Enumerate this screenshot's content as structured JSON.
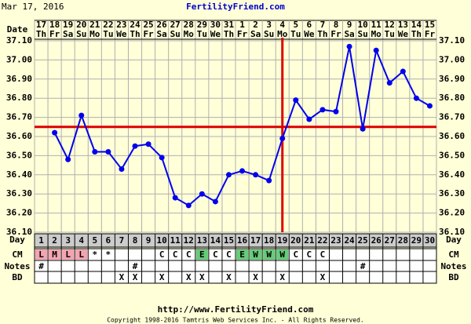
{
  "chart_data": {
    "type": "line",
    "header_date": "Mar 17, 2016",
    "title": "FertilityFriend.com",
    "row_labels": {
      "date": "Date",
      "day": "Day",
      "cm": "CM",
      "notes": "Notes",
      "bd": "BD"
    },
    "dates": [
      "17",
      "18",
      "19",
      "20",
      "21",
      "22",
      "23",
      "24",
      "25",
      "26",
      "27",
      "28",
      "29",
      "30",
      "31",
      "1",
      "2",
      "3",
      "4",
      "5",
      "6",
      "7",
      "8",
      "9",
      "10",
      "11",
      "12",
      "13",
      "14",
      "15"
    ],
    "weekdays": [
      "Th",
      "Fr",
      "Sa",
      "Su",
      "Mo",
      "Tu",
      "We",
      "Th",
      "Fr",
      "Sa",
      "Su",
      "Mo",
      "Tu",
      "We",
      "Th",
      "Fr",
      "Sa",
      "Su",
      "Mo",
      "Tu",
      "We",
      "Th",
      "Fr",
      "Sa",
      "Su",
      "Mo",
      "Tu",
      "We",
      "Th",
      "Fr"
    ],
    "categories": [
      1,
      2,
      3,
      4,
      5,
      6,
      7,
      8,
      9,
      10,
      11,
      12,
      13,
      14,
      15,
      16,
      17,
      18,
      19,
      20,
      21,
      22,
      23,
      24,
      25,
      26,
      27,
      28,
      29,
      30
    ],
    "series": [
      {
        "color": "#0000ee",
        "values": [
          null,
          36.62,
          36.48,
          36.71,
          36.52,
          36.52,
          36.43,
          36.55,
          36.56,
          36.49,
          36.28,
          36.24,
          36.3,
          36.26,
          36.4,
          36.42,
          36.4,
          36.37,
          36.59,
          36.79,
          36.69,
          36.74,
          36.73,
          37.07,
          36.64,
          37.05,
          36.88,
          36.94,
          36.8,
          36.76
        ]
      }
    ],
    "ylim": [
      36.1,
      37.1
    ],
    "yticks": [
      {
        "value": 36.1,
        "label": "36.10"
      },
      {
        "value": 36.2,
        "label": "36.20"
      },
      {
        "value": 36.3,
        "label": "36.30"
      },
      {
        "value": 36.4,
        "label": "36.40"
      },
      {
        "value": 36.5,
        "label": "36.50"
      },
      {
        "value": 36.6,
        "label": "36.60"
      },
      {
        "value": 36.7,
        "label": "36.70"
      },
      {
        "value": 36.8,
        "label": "36.80"
      },
      {
        "value": 36.9,
        "label": "36.90"
      },
      {
        "value": 37.0,
        "label": "37.00"
      },
      {
        "value": 37.1,
        "label": "37.10"
      }
    ],
    "grid": true,
    "coverline": 36.65,
    "ovulation_day": 19,
    "reference_color": "#dd0000",
    "cm": [
      "L",
      "M",
      "L",
      "L",
      "*",
      "*",
      null,
      null,
      null,
      "C",
      "C",
      "C",
      "E",
      "C",
      "C",
      "E",
      "W",
      "W",
      "W",
      "C",
      "C",
      "C",
      null,
      null,
      null,
      null,
      null,
      null,
      null,
      null
    ],
    "cm_colors": {
      "L": "#f4a4b0",
      "M": "#f4a4b0",
      "E": "#66cc77",
      "W": "#66cc77"
    },
    "notes": [
      "#",
      null,
      null,
      null,
      null,
      null,
      null,
      "#",
      null,
      null,
      null,
      null,
      null,
      null,
      null,
      null,
      null,
      null,
      null,
      null,
      null,
      null,
      null,
      null,
      "#",
      null,
      null,
      null,
      null,
      null
    ],
    "bd": [
      null,
      null,
      null,
      null,
      null,
      null,
      "X",
      "X",
      null,
      "X",
      null,
      "X",
      "X",
      null,
      "X",
      null,
      "X",
      null,
      "X",
      null,
      null,
      "X",
      null,
      null,
      null,
      null,
      null,
      null,
      null,
      null
    ],
    "footer_url": "http://www.FertilityFriend.com",
    "copyright": "Copyright 1998-2016 Tamtris Web Services Inc. - All Rights Reserved."
  }
}
